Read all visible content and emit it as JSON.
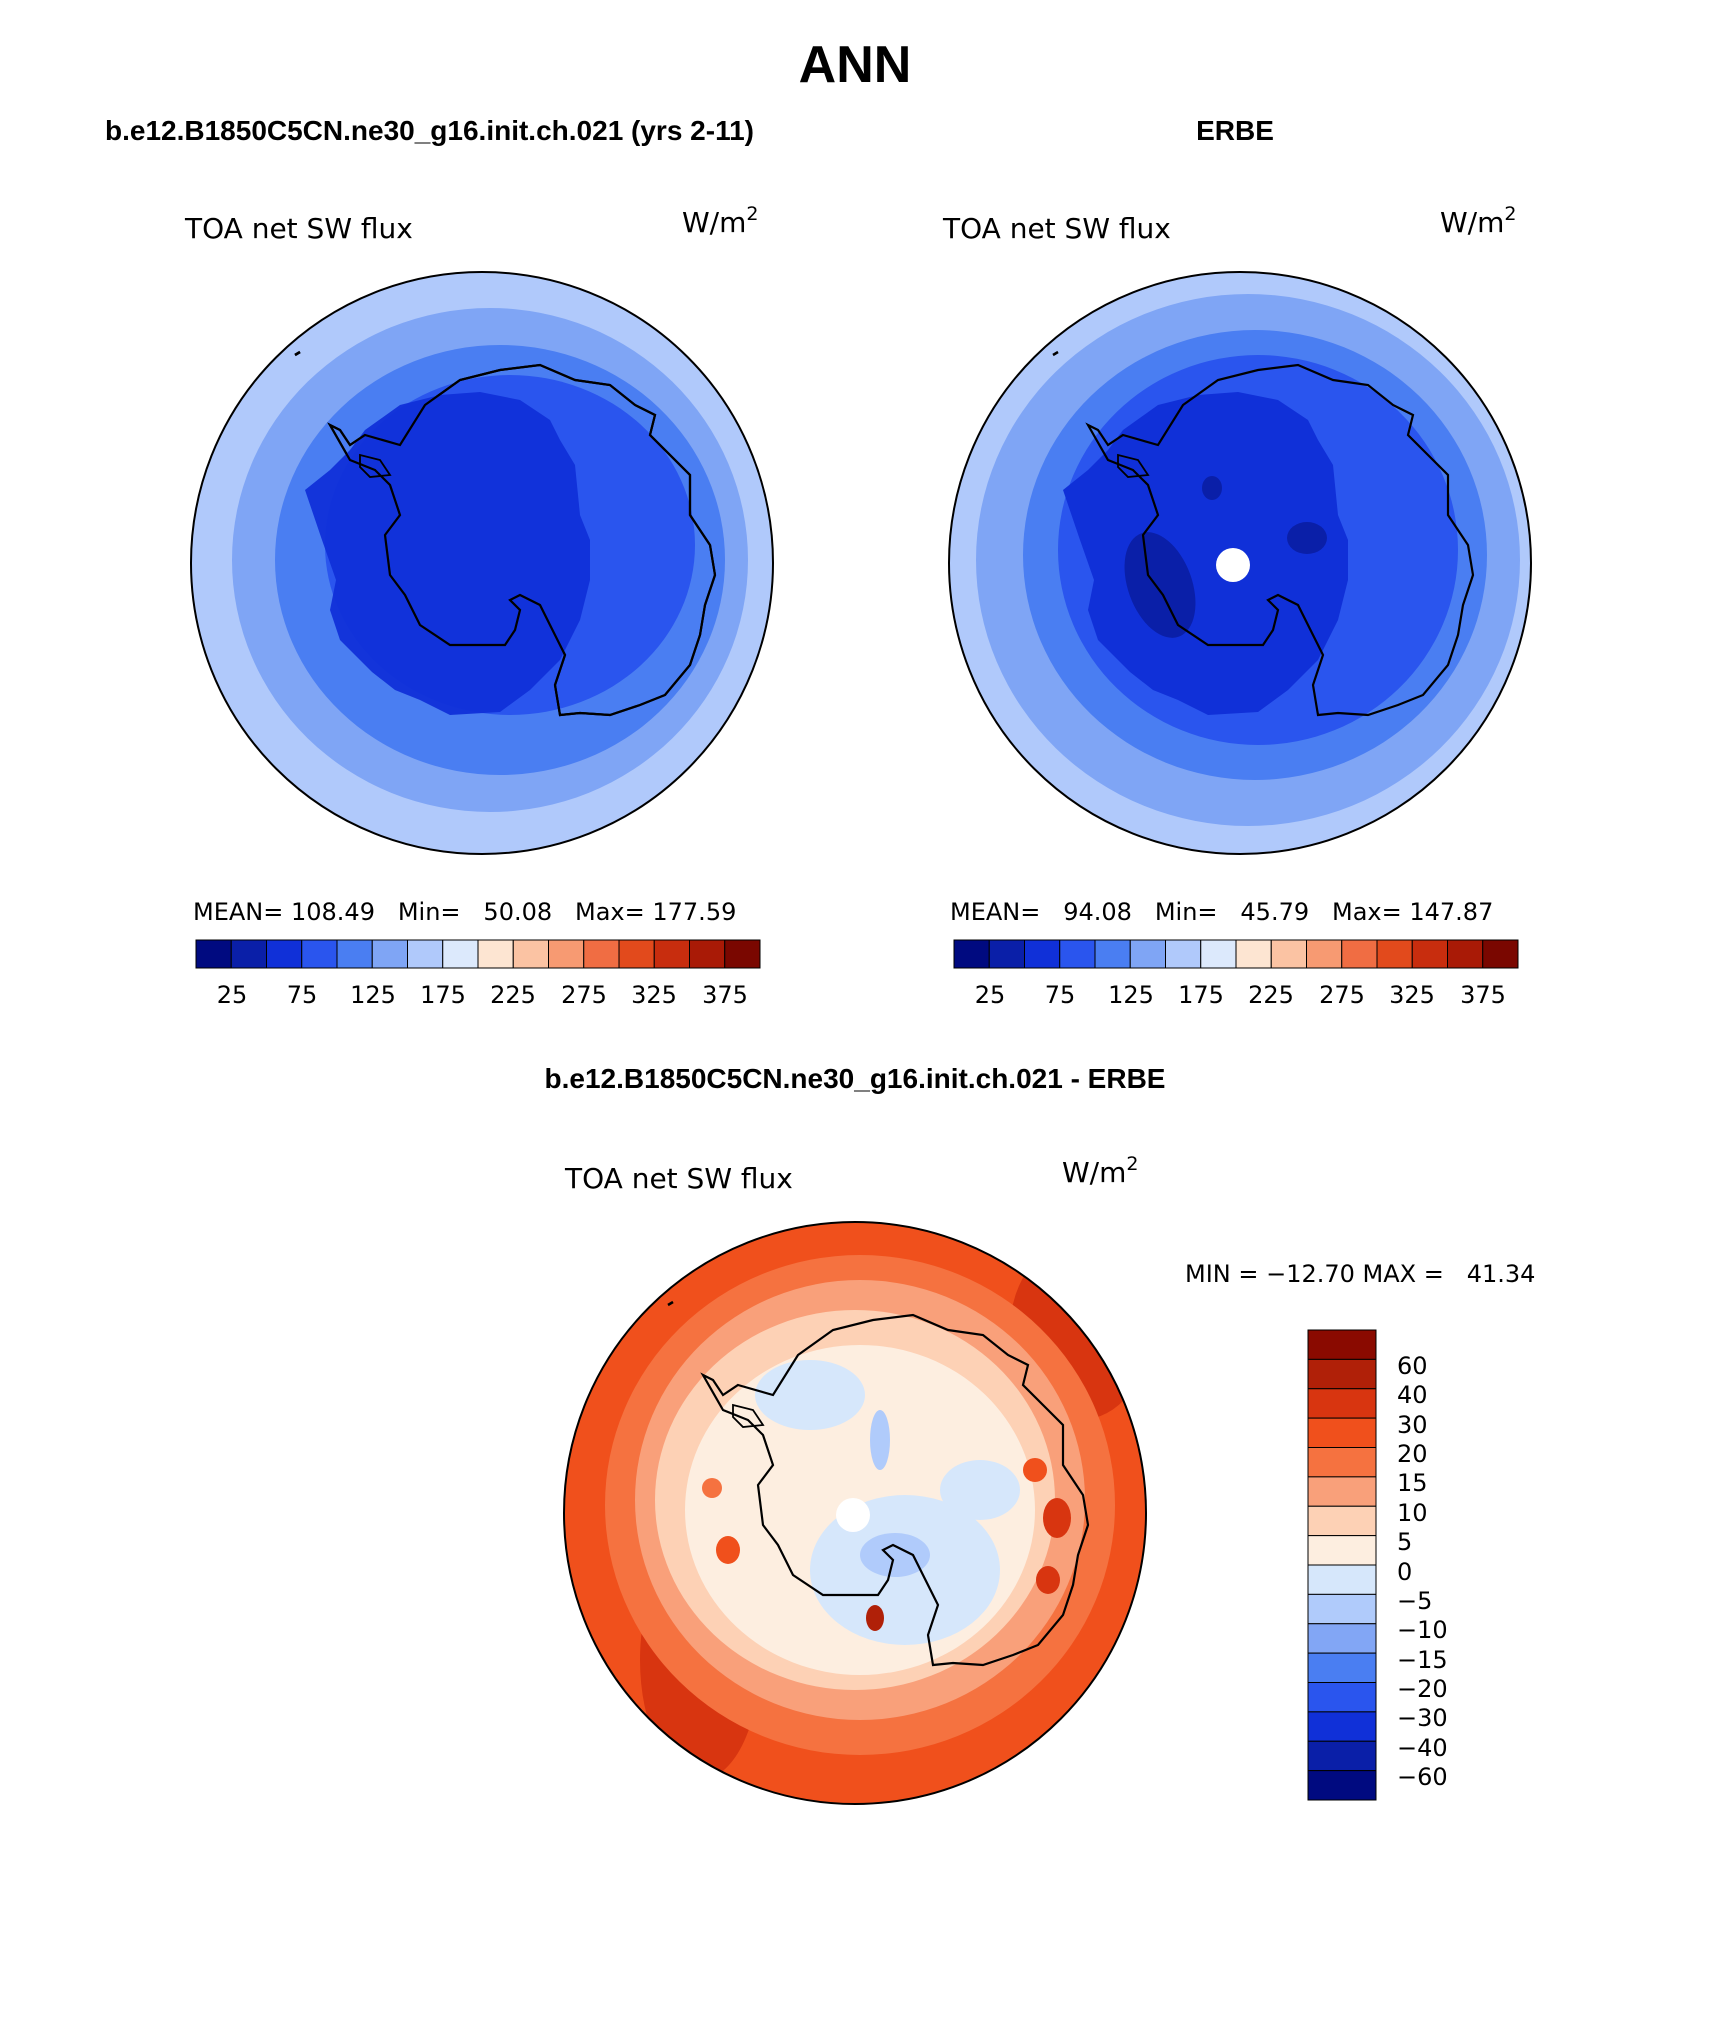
{
  "page": {
    "title": "ANN"
  },
  "panels": [
    {
      "case_title": "b.e12.B1850C5CN.ne30_g16.init.ch.021 (yrs 2-11)",
      "variable": "TOA net SW flux",
      "units": "W/m",
      "units_sup": "2",
      "stats": "MEAN= 108.49   Min=   50.08   Max= 177.59",
      "colorbar_labels": [
        "25",
        "75",
        "125",
        "175",
        "225",
        "275",
        "325",
        "375"
      ]
    },
    {
      "case_title": "ERBE",
      "variable": "TOA net SW flux",
      "units": "W/m",
      "units_sup": "2",
      "stats": "MEAN=   94.08   Min=   45.79   Max= 147.87",
      "colorbar_labels": [
        "25",
        "75",
        "125",
        "175",
        "225",
        "275",
        "325",
        "375"
      ]
    },
    {
      "case_title": "b.e12.B1850C5CN.ne30_g16.init.ch.021 - ERBE",
      "variable": "TOA net SW flux",
      "units": "W/m",
      "units_sup": "2",
      "stats": "MIN = −12.70 MAX =   41.34",
      "colorbar_labels": [
        "60",
        "40",
        "30",
        "20",
        "15",
        "10",
        "5",
        "0",
        "−5",
        "−10",
        "−15",
        "−20",
        "−30",
        "−40",
        "−60"
      ]
    }
  ],
  "colors": {
    "abs_scale": [
      "#000a80",
      "#0a1fa8",
      "#1030d8",
      "#2a55ee",
      "#4a7ef2",
      "#7fa5f5",
      "#b0c9fb",
      "#dce9fc",
      "#fde5d2",
      "#fbc3a3",
      "#f79a72",
      "#f06d43",
      "#e24a1c",
      "#c82d0e",
      "#a91a06",
      "#7a0700"
    ],
    "diff_scale_top_to_bottom": [
      "#8a0a00",
      "#b02008",
      "#d83510",
      "#f0501c",
      "#f57240",
      "#f9a07a",
      "#fdd1b5",
      "#fdeee0",
      "#d6e7fb",
      "#b0cbfb",
      "#82a6f5",
      "#4a7ef2",
      "#2a55ee",
      "#1030d8",
      "#0a1fa8",
      "#000a80"
    ]
  }
}
